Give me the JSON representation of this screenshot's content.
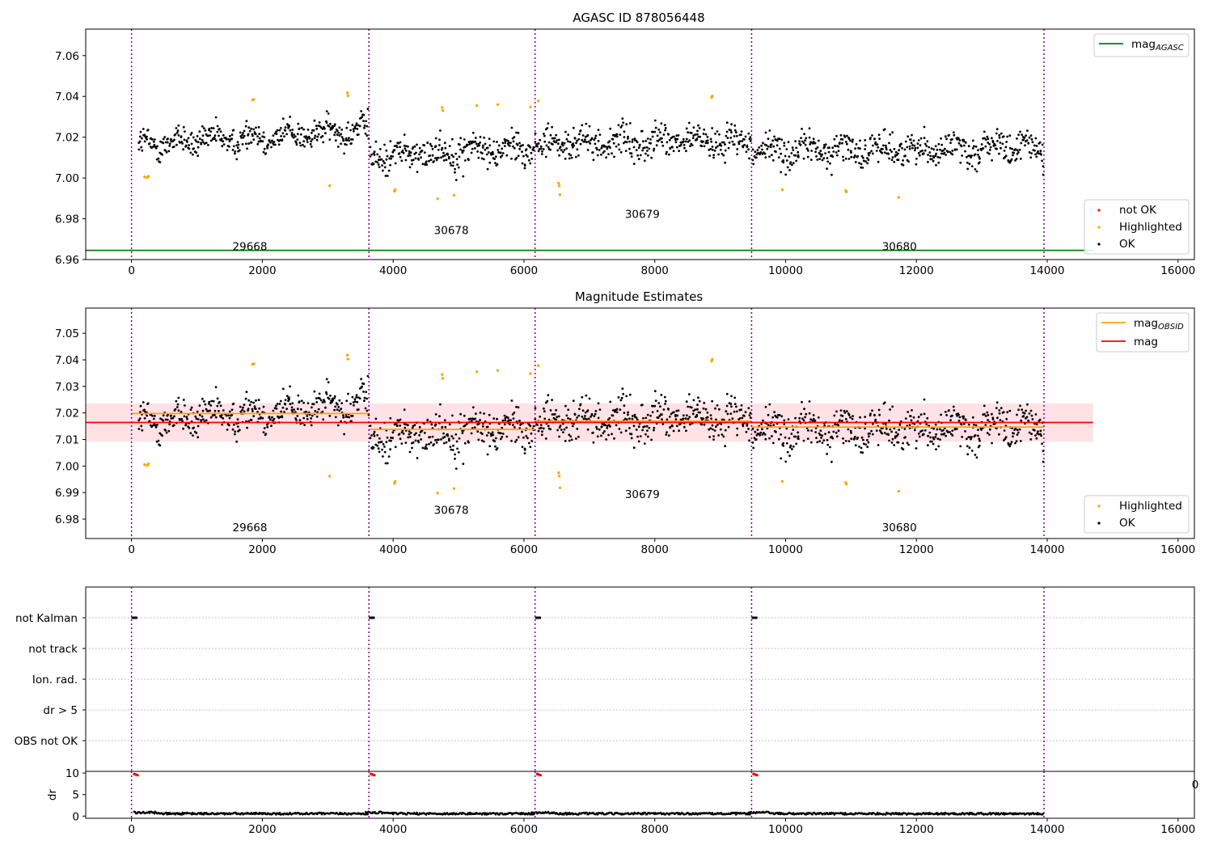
{
  "chart_data": [
    {
      "type": "scatter",
      "title": "AGASC ID 878056448",
      "xlabel": "",
      "ylabel": "",
      "xlim": [
        -700,
        16250
      ],
      "ylim": [
        6.96,
        7.073
      ],
      "xticks": [
        0,
        2000,
        4000,
        6000,
        8000,
        10000,
        12000,
        14000,
        16000
      ],
      "yticks": [
        6.96,
        6.98,
        7.0,
        7.02,
        7.04,
        7.06
      ],
      "ytick_labels": [
        "6.96",
        "6.98",
        "7.00",
        "7.02",
        "7.04",
        "7.06"
      ],
      "obs_boundaries": [
        0,
        3630,
        6170,
        9480,
        13950
      ],
      "obs_labels": [
        {
          "text": "29668",
          "x": 1810,
          "y": 6.9645
        },
        {
          "text": "30678",
          "x": 4890,
          "y": 6.9725
        },
        {
          "text": "30679",
          "x": 7810,
          "y": 6.9805
        },
        {
          "text": "30680",
          "x": 11740,
          "y": 6.9645
        }
      ],
      "agasc_mag": 6.9645,
      "agasc_line_x": [
        -700,
        14700
      ],
      "segments": [
        {
          "x0": 100,
          "x1": 3620,
          "start": 7.0165,
          "end": 7.0235,
          "spread": 0.0065
        },
        {
          "x0": 3640,
          "x1": 6160,
          "start": 7.0105,
          "end": 7.0155,
          "spread": 0.0072
        },
        {
          "x0": 6180,
          "x1": 9470,
          "start": 7.0165,
          "end": 7.0185,
          "spread": 0.0068
        },
        {
          "x0": 9490,
          "x1": 13950,
          "start": 7.0135,
          "end": 7.015,
          "spread": 0.007
        }
      ],
      "highlighted": [
        [
          200,
          7.0005
        ],
        [
          240,
          7.0002
        ],
        [
          260,
          7.0008
        ],
        [
          1850,
          7.0383
        ],
        [
          1870,
          7.0385
        ],
        [
          3030,
          6.9962
        ],
        [
          3300,
          7.0418
        ],
        [
          3310,
          7.0403
        ],
        [
          4020,
          6.9935
        ],
        [
          4030,
          6.9942
        ],
        [
          4680,
          6.9898
        ],
        [
          4750,
          7.0345
        ],
        [
          4760,
          7.033
        ],
        [
          4930,
          6.9915
        ],
        [
          5280,
          7.0355
        ],
        [
          5600,
          7.036
        ],
        [
          6100,
          7.0348
        ],
        [
          6220,
          7.0378
        ],
        [
          6530,
          6.9975
        ],
        [
          6540,
          6.9962
        ],
        [
          6550,
          6.9918
        ],
        [
          8870,
          7.0395
        ],
        [
          8880,
          7.0402
        ],
        [
          9950,
          6.9942
        ],
        [
          10920,
          6.9938
        ],
        [
          10930,
          6.9932
        ],
        [
          11730,
          6.9905
        ]
      ],
      "legend_upper": [
        {
          "name": "mag$_{AGASC}$",
          "label_main": "mag",
          "label_sub": "AGASC",
          "color": "#008000"
        }
      ],
      "legend_lower": [
        {
          "name": "not OK",
          "color": "#ff0000"
        },
        {
          "name": "Highlighted",
          "color": "#ffa500"
        },
        {
          "name": "OK",
          "color": "#000000"
        }
      ]
    },
    {
      "type": "scatter",
      "title": "Magnitude Estimates",
      "xlim": [
        -700,
        16250
      ],
      "ylim": [
        6.9727,
        7.0595
      ],
      "xticks": [
        0,
        2000,
        4000,
        6000,
        8000,
        10000,
        12000,
        14000,
        16000
      ],
      "yticks": [
        6.98,
        6.99,
        7.0,
        7.01,
        7.02,
        7.03,
        7.04,
        7.05
      ],
      "ytick_labels": [
        "6.98",
        "6.99",
        "7.00",
        "7.01",
        "7.02",
        "7.03",
        "7.04",
        "7.05"
      ],
      "obs_labels": [
        {
          "text": "29668",
          "x": 1810,
          "y": 6.9755
        },
        {
          "text": "30678",
          "x": 4890,
          "y": 6.982
        },
        {
          "text": "30679",
          "x": 7810,
          "y": 6.988
        },
        {
          "text": "30680",
          "x": 11740,
          "y": 6.9755
        }
      ],
      "mag": 7.0164,
      "mag_band": [
        7.0092,
        7.0236
      ],
      "mag_x": [
        -700,
        14700
      ],
      "mag_obsid": [
        {
          "x0": 0,
          "x1": 3630,
          "value": 7.0198
        },
        {
          "x0": 3630,
          "x1": 6170,
          "value": 7.0138
        },
        {
          "x0": 6170,
          "x1": 9480,
          "value": 7.0169
        },
        {
          "x0": 9480,
          "x1": 13950,
          "value": 7.0147
        }
      ],
      "legend_upper": [
        {
          "name": "mag$_{OBSID}$",
          "label_main": "mag",
          "label_sub": "OBSID",
          "color": "#ffa500"
        },
        {
          "name": "mag",
          "color": "#ff0000"
        }
      ],
      "legend_lower": [
        {
          "name": "Highlighted",
          "color": "#ffa500"
        },
        {
          "name": "OK",
          "color": "#000000"
        }
      ]
    },
    {
      "type": "scatter",
      "title": "",
      "ylabel": "",
      "flag_labels": [
        "not Kalman",
        "not track",
        "Ion. rad.",
        "dr > 5",
        "OBS not OK"
      ],
      "flag_marks": [
        {
          "flag": "not Kalman",
          "x0": 0,
          "x1": 90
        },
        {
          "flag": "not Kalman",
          "x0": 3630,
          "x1": 3720
        },
        {
          "flag": "not Kalman",
          "x0": 6170,
          "x1": 6260
        },
        {
          "flag": "not Kalman",
          "x0": 9480,
          "x1": 9570
        }
      ]
    },
    {
      "type": "scatter",
      "title": "",
      "ylabel": "dr",
      "xlim": [
        -700,
        16250
      ],
      "ylim": [
        -0.5,
        10.4
      ],
      "xticks": [
        0,
        2000,
        4000,
        6000,
        8000,
        10000,
        12000,
        14000,
        16000
      ],
      "yticks": [
        0,
        5,
        10
      ],
      "outlier_clusters": [
        [
          40,
          9.8
        ],
        [
          3660,
          9.8
        ],
        [
          6200,
          9.8
        ],
        [
          9510,
          9.8
        ]
      ],
      "overlap_tick_text": "0"
    }
  ]
}
